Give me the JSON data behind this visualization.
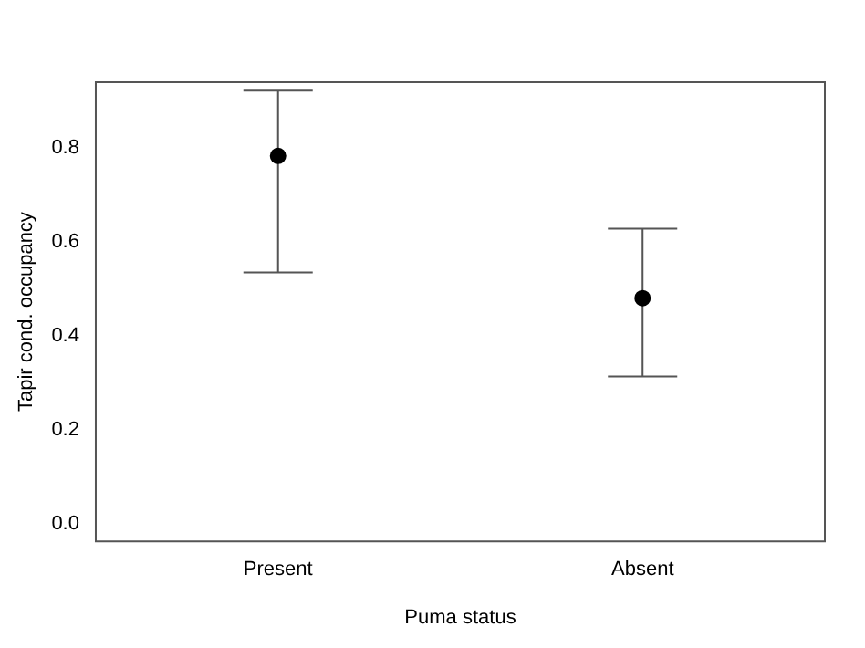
{
  "chart_data": {
    "type": "scatter",
    "xlabel": "Puma status",
    "ylabel": "Tapir cond. occupancy",
    "categories": [
      "Present",
      "Absent"
    ],
    "values": [
      0.783,
      0.48
    ],
    "errors": [
      [
        0.535,
        0.922
      ],
      [
        0.313,
        0.628
      ]
    ],
    "color": "#000000",
    "marker": "circle",
    "ylim": [
      -0.038,
      0.94
    ],
    "yticks": [
      {
        "value": 0,
        "label": "0.0"
      },
      {
        "value": 0.2,
        "label": "0.2"
      },
      {
        "value": 0.4,
        "label": "0.4"
      },
      {
        "value": 0.6,
        "label": "0.6"
      },
      {
        "value": 0.8,
        "label": "0.8"
      }
    ],
    "grid": false,
    "legend": false
  }
}
